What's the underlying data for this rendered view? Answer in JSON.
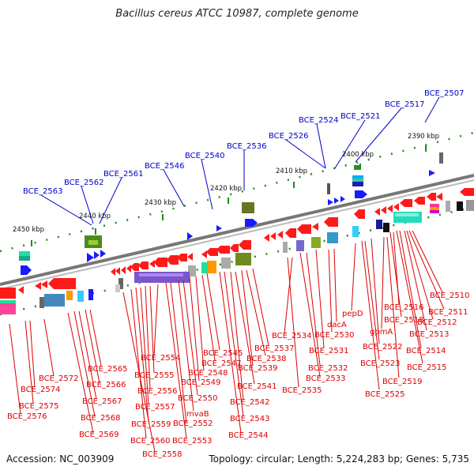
{
  "title": "Bacillus cereus ATCC 10987, complete genome",
  "footer": {
    "accession": "Accession: NC_003909",
    "summary": "Topology: circular; Length: 5,224,283 bp; Genes: 5,735"
  },
  "colors": {
    "top_label": "#0000cc",
    "bottom_label": "#dd0000",
    "forward_gene": "#1a1aff",
    "reverse_gene": "#ff1a1a",
    "ruler_tick": "#1e8c1e",
    "backbone": "#808080"
  },
  "ruler_labels": [
    "2390 kbp",
    "2400 kbp",
    "2410 kbp",
    "2420 kbp",
    "2430 kbp",
    "2440 kbp",
    "2450 kbp"
  ],
  "top_labels": [
    "BCE_2507",
    "BCE_2517",
    "BCE_2521",
    "BCE_2524",
    "BCE_2526",
    "BCE_2536",
    "BCE_2540",
    "BCE_2546",
    "BCE_2561",
    "BCE_2562",
    "BCE_2563"
  ],
  "bottom_labels": [
    "BCE_2510",
    "BCE_2511",
    "BCE_2512",
    "BCE_2513",
    "BCE_2514",
    "BCE_2515",
    "BCE_2516",
    "BCE_2518",
    "gpmA",
    "BCE_2519",
    "BCE_2522",
    "BCE_2523",
    "BCE_2525",
    "pepD",
    "dacA",
    "BCE_2530",
    "BCE_2531",
    "BCE_2532",
    "BCE_2533",
    "BCE_2534",
    "BCE_2535",
    "BCE_2537",
    "BCE_2538",
    "BCE_2539",
    "BCE_2541",
    "BCE_2542",
    "BCE_2543",
    "BCE_2544",
    "BCE_2545",
    "BCE_2547",
    "BCE_2548",
    "BCE_2549",
    "BCE_2550",
    "mvaB",
    "BCE_2552",
    "BCE_2553",
    "BCE_2554",
    "BCE_2555",
    "BCE_2556",
    "BCE_2557",
    "BCE_2559",
    "BCE_2560",
    "BCE_2558",
    "BCE_2565",
    "BCE_2566",
    "BCE_2567",
    "BCE_2568",
    "BCE_2569",
    "BCE_2572",
    "BCE_2574",
    "BCE_2575",
    "BCE_2576"
  ]
}
